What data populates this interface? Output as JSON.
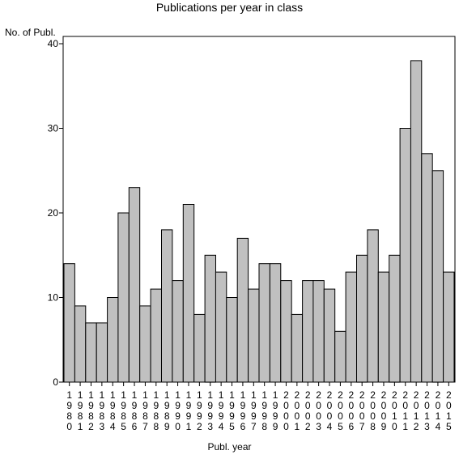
{
  "chart_data": {
    "type": "bar",
    "title": "Publications per year in class",
    "ylabel": "No. of Publ.",
    "xlabel": "Publ. year",
    "ylim": [
      0,
      40
    ],
    "yticks": [
      0,
      10,
      20,
      30,
      40
    ],
    "bar_color": "#c0c0c0",
    "categories": [
      "1980",
      "1981",
      "1982",
      "1983",
      "1984",
      "1985",
      "1986",
      "1987",
      "1988",
      "1989",
      "1990",
      "1991",
      "1992",
      "1993",
      "1994",
      "1995",
      "1996",
      "1997",
      "1998",
      "1999",
      "2000",
      "2001",
      "2002",
      "2003",
      "2004",
      "2005",
      "2006",
      "2007",
      "2008",
      "2009",
      "2010",
      "2011",
      "2012",
      "2013",
      "2014",
      "2015"
    ],
    "values": [
      14,
      9,
      7,
      7,
      10,
      20,
      23,
      9,
      11,
      18,
      12,
      21,
      8,
      15,
      13,
      10,
      17,
      11,
      14,
      14,
      12,
      8,
      12,
      12,
      11,
      6,
      13,
      15,
      18,
      13,
      15,
      30,
      38,
      27,
      25,
      13
    ]
  }
}
